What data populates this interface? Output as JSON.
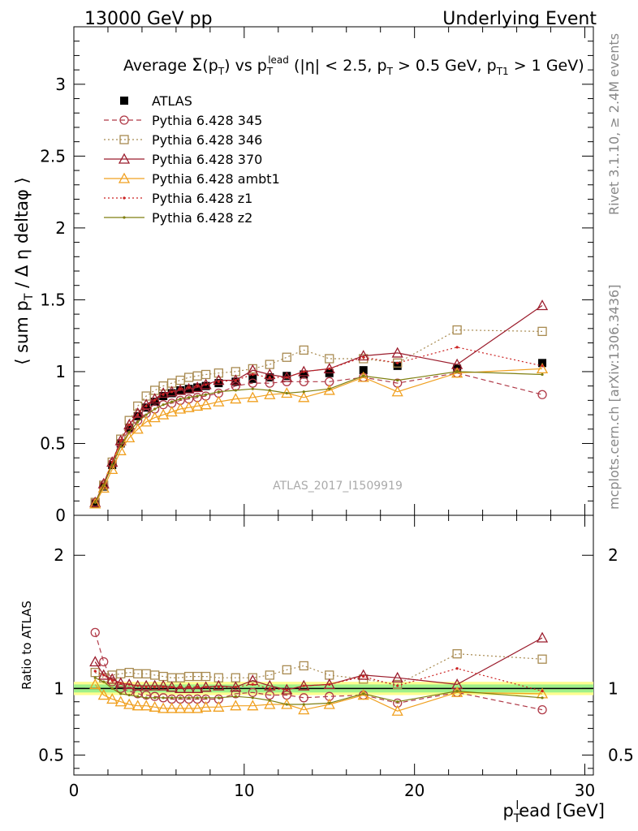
{
  "header": {
    "left": "13000 GeV pp",
    "right": "Underlying Event"
  },
  "plot_title": "Average Σ(pT) vs pT^lead (|η| < 2.5, pT > 0.5 GeV, pT1 > 1 GeV)",
  "watermark": "ATLAS_2017_I1509919",
  "side_labels": {
    "rivet": "Rivet 3.1.10, ≥ 2.4M events",
    "mcplots": "mcplots.cern.ch [arXiv:1306.3436]"
  },
  "chart_data": [
    {
      "type": "scatter",
      "ylabel": "⟨ sum pT / Δ η deltaφ ⟩",
      "xlim": [
        0,
        30.5
      ],
      "ylim": [
        0,
        3.4
      ],
      "yticks": [
        "0",
        "0.5",
        "1",
        "1.5",
        "2",
        "2.5",
        "3"
      ],
      "x": [
        1.25,
        1.75,
        2.25,
        2.75,
        3.25,
        3.75,
        4.25,
        4.75,
        5.25,
        5.75,
        6.25,
        6.75,
        7.25,
        7.75,
        8.5,
        9.5,
        10.5,
        11.5,
        12.5,
        13.5,
        15,
        17,
        19,
        22.5,
        27.5
      ],
      "series": [
        {
          "name": "ATLAS",
          "color": "#000000",
          "marker": "filled-square",
          "line": "none",
          "values": [
            0.08,
            0.2,
            0.35,
            0.5,
            0.61,
            0.69,
            0.75,
            0.79,
            0.83,
            0.85,
            0.87,
            0.88,
            0.89,
            0.9,
            0.92,
            0.93,
            0.95,
            0.96,
            0.97,
            0.98,
            0.99,
            1.01,
            1.04,
            1.02,
            1.06
          ]
        },
        {
          "name": "Pythia 6.428 345",
          "color": "#b03a48",
          "marker": "open-circle",
          "line": "dashed",
          "values": [
            0.09,
            0.21,
            0.36,
            0.5,
            0.6,
            0.66,
            0.71,
            0.74,
            0.77,
            0.78,
            0.8,
            0.81,
            0.82,
            0.83,
            0.85,
            0.9,
            0.92,
            0.92,
            0.93,
            0.93,
            0.93,
            0.96,
            0.92,
            0.99,
            0.84
          ]
        },
        {
          "name": "Pythia 6.428 346",
          "color": "#a88a50",
          "marker": "open-square",
          "line": "dotted",
          "values": [
            0.09,
            0.21,
            0.37,
            0.53,
            0.66,
            0.76,
            0.83,
            0.87,
            0.9,
            0.92,
            0.94,
            0.96,
            0.97,
            0.98,
            0.99,
            1.0,
            1.02,
            1.05,
            1.1,
            1.15,
            1.09,
            1.09,
            1.06,
            1.29,
            1.28
          ]
        },
        {
          "name": "Pythia 6.428 370",
          "color": "#9b1c2c",
          "marker": "open-triangle",
          "line": "solid",
          "values": [
            0.09,
            0.22,
            0.37,
            0.52,
            0.63,
            0.71,
            0.77,
            0.81,
            0.85,
            0.86,
            0.87,
            0.88,
            0.89,
            0.91,
            0.94,
            0.94,
            1.01,
            0.98,
            0.96,
            1.0,
            1.02,
            1.11,
            1.13,
            1.05,
            1.46
          ]
        },
        {
          "name": "Pythia 6.428 ambt1",
          "color": "#f0a020",
          "marker": "open-triangle",
          "line": "solid",
          "values": [
            0.08,
            0.19,
            0.32,
            0.45,
            0.54,
            0.6,
            0.65,
            0.68,
            0.7,
            0.72,
            0.74,
            0.75,
            0.76,
            0.77,
            0.79,
            0.81,
            0.82,
            0.84,
            0.85,
            0.82,
            0.87,
            0.96,
            0.86,
            0.99,
            1.02
          ]
        },
        {
          "name": "Pythia 6.428 z1",
          "color": "#cc2222",
          "marker": "dot",
          "line": "dotted",
          "values": [
            0.09,
            0.22,
            0.37,
            0.52,
            0.63,
            0.7,
            0.76,
            0.8,
            0.84,
            0.86,
            0.88,
            0.89,
            0.9,
            0.91,
            0.93,
            0.94,
            0.98,
            0.96,
            0.96,
            1.0,
            1.02,
            1.1,
            1.06,
            1.17,
            1.04
          ]
        },
        {
          "name": "Pythia 6.428 z2",
          "color": "#7f7f10",
          "marker": "dot",
          "line": "solid",
          "values": [
            0.09,
            0.21,
            0.35,
            0.48,
            0.58,
            0.65,
            0.7,
            0.74,
            0.77,
            0.79,
            0.81,
            0.82,
            0.83,
            0.84,
            0.86,
            0.87,
            0.88,
            0.87,
            0.85,
            0.86,
            0.88,
            0.97,
            0.94,
            1.0,
            0.98
          ]
        }
      ]
    },
    {
      "type": "line",
      "ylabel": "Ratio to ATLAS",
      "xlabel": "p_T^lead [GeV]",
      "xlim": [
        0,
        30.5
      ],
      "ylim": [
        0.35,
        2.3
      ],
      "xticks": [
        "0",
        "10",
        "20",
        "30"
      ],
      "yticks": [
        "0.5",
        "1",
        "2"
      ],
      "reference": 1,
      "uncertainty_band": {
        "inner": 0.03,
        "outer": 0.05
      },
      "x": [
        1.25,
        1.75,
        2.25,
        2.75,
        3.25,
        3.75,
        4.25,
        4.75,
        5.25,
        5.75,
        6.25,
        6.75,
        7.25,
        7.75,
        8.5,
        9.5,
        10.5,
        11.5,
        12.5,
        13.5,
        15,
        17,
        19,
        22.5,
        27.5
      ],
      "series": [
        {
          "name": "Pythia 6.428 345",
          "color": "#b03a48",
          "marker": "open-circle",
          "line": "dashed",
          "values": [
            1.42,
            1.2,
            1.05,
            1.0,
            0.98,
            0.96,
            0.95,
            0.94,
            0.93,
            0.92,
            0.92,
            0.92,
            0.92,
            0.92,
            0.92,
            0.96,
            0.97,
            0.95,
            0.95,
            0.93,
            0.94,
            0.95,
            0.89,
            0.97,
            0.84
          ]
        },
        {
          "name": "Pythia 6.428 346",
          "color": "#a88a50",
          "marker": "open-square",
          "line": "dotted",
          "values": [
            1.12,
            1.08,
            1.1,
            1.11,
            1.12,
            1.11,
            1.11,
            1.1,
            1.09,
            1.08,
            1.08,
            1.09,
            1.09,
            1.09,
            1.08,
            1.08,
            1.08,
            1.1,
            1.14,
            1.17,
            1.1,
            1.07,
            1.03,
            1.26,
            1.22
          ]
        },
        {
          "name": "Pythia 6.428 370",
          "color": "#9b1c2c",
          "marker": "open-triangle",
          "line": "solid",
          "values": [
            1.2,
            1.1,
            1.07,
            1.04,
            1.03,
            1.02,
            1.02,
            1.02,
            1.02,
            1.01,
            1.0,
            1.0,
            1.0,
            1.01,
            1.02,
            1.01,
            1.06,
            1.02,
            0.99,
            1.02,
            1.03,
            1.1,
            1.08,
            1.03,
            1.38
          ]
        },
        {
          "name": "Pythia 6.428 ambt1",
          "color": "#f0a020",
          "marker": "open-triangle",
          "line": "solid",
          "values": [
            1.03,
            0.95,
            0.92,
            0.9,
            0.88,
            0.87,
            0.87,
            0.86,
            0.85,
            0.85,
            0.85,
            0.85,
            0.85,
            0.86,
            0.86,
            0.87,
            0.87,
            0.88,
            0.88,
            0.84,
            0.88,
            0.95,
            0.83,
            0.97,
            0.96
          ]
        },
        {
          "name": "Pythia 6.428 z1",
          "color": "#cc2222",
          "marker": "dot",
          "line": "dotted",
          "values": [
            1.13,
            1.1,
            1.06,
            1.04,
            1.03,
            1.02,
            1.01,
            1.01,
            1.01,
            1.01,
            1.01,
            1.01,
            1.01,
            1.01,
            1.01,
            1.01,
            1.03,
            1.0,
            0.99,
            1.02,
            1.03,
            1.09,
            1.02,
            1.15,
            0.98
          ]
        },
        {
          "name": "Pythia 6.428 z2",
          "color": "#7f7f10",
          "marker": "dot",
          "line": "solid",
          "values": [
            1.08,
            1.05,
            1.0,
            0.96,
            0.95,
            0.94,
            0.93,
            0.93,
            0.93,
            0.93,
            0.93,
            0.93,
            0.93,
            0.93,
            0.93,
            0.94,
            0.93,
            0.91,
            0.88,
            0.88,
            0.89,
            0.96,
            0.9,
            0.98,
            0.93
          ]
        }
      ]
    }
  ]
}
